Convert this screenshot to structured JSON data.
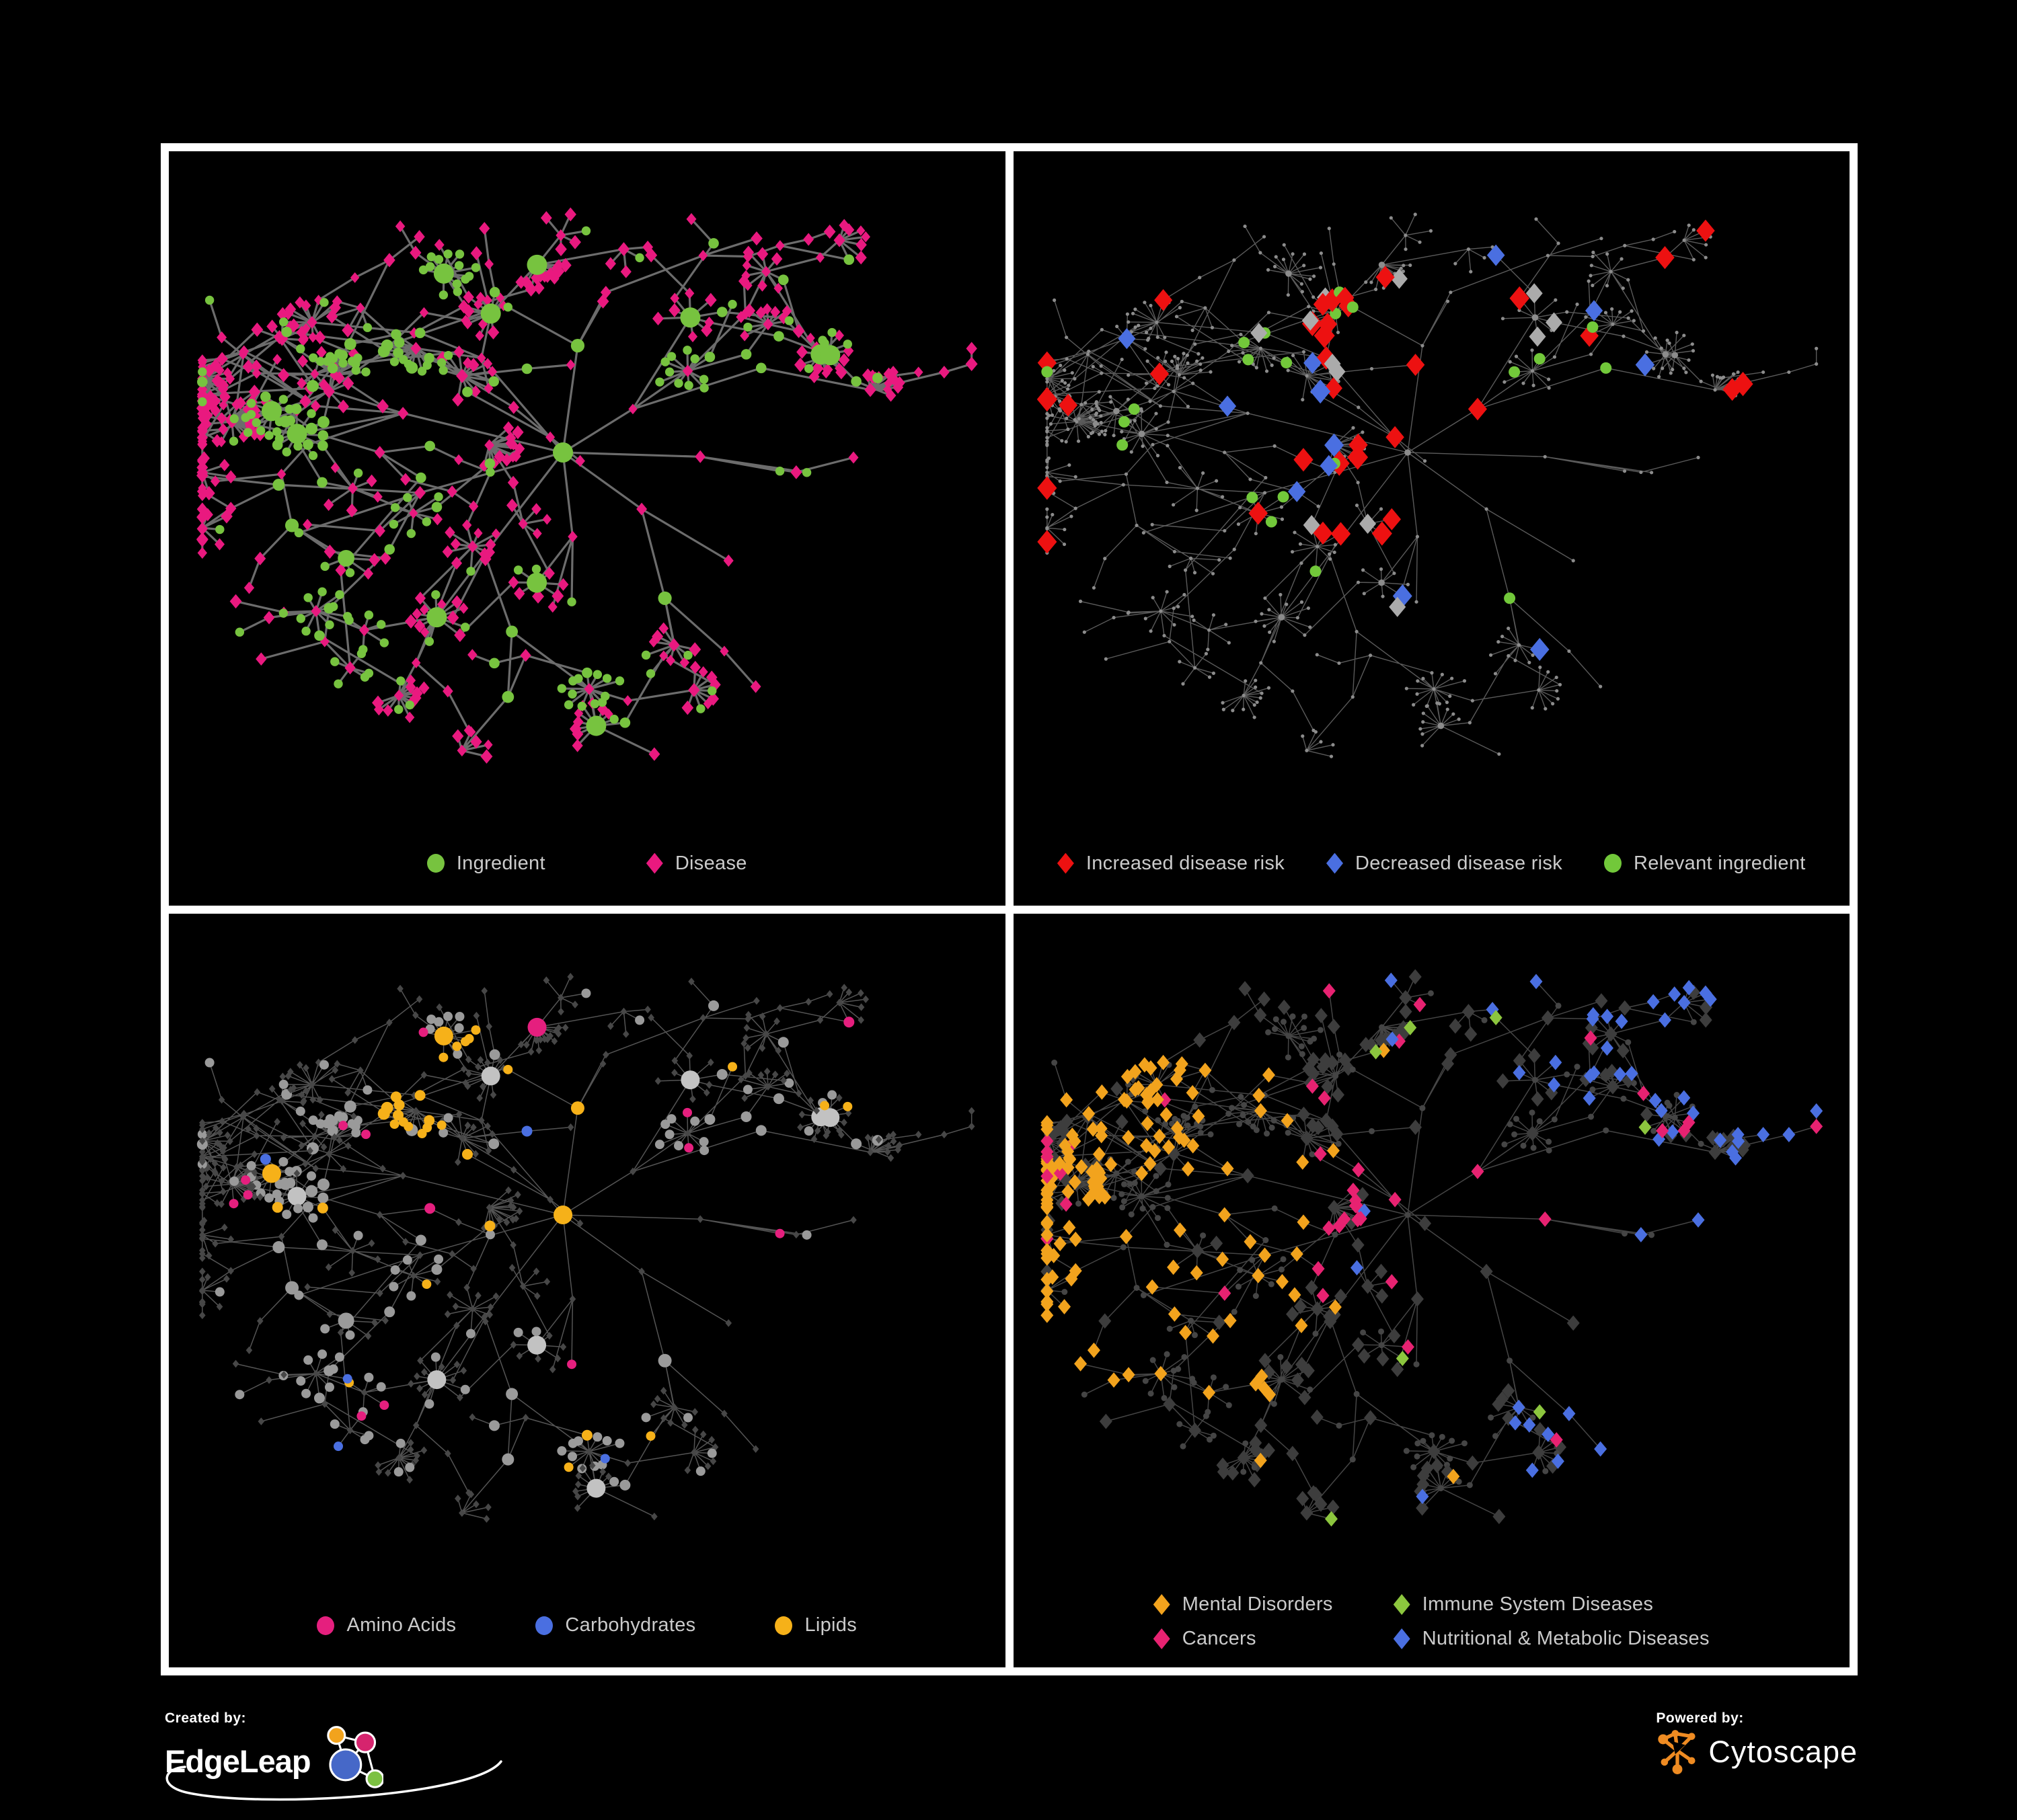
{
  "page": {
    "background": "#000000",
    "frame_color": "#ffffff"
  },
  "panels": [
    {
      "id": "ingredient-disease",
      "legend_rows": [
        [
          {
            "shape": "circle",
            "color": "#77C33F",
            "label": "Ingredient"
          },
          {
            "shape": "diamond",
            "color": "#E9197F",
            "label": "Disease"
          }
        ]
      ]
    },
    {
      "id": "disease-risk",
      "legend_rows": [
        [
          {
            "shape": "diamond",
            "color": "#ED1111",
            "label": "Increased disease risk"
          },
          {
            "shape": "diamond",
            "color": "#4A6FE1",
            "label": "Decreased disease risk"
          },
          {
            "shape": "circle",
            "color": "#72C83A",
            "label": "Relevant ingredient"
          }
        ]
      ]
    },
    {
      "id": "ingredient-classes",
      "legend_rows": [
        [
          {
            "shape": "circle",
            "color": "#E51F7E",
            "label": "Amino Acids"
          },
          {
            "shape": "circle",
            "color": "#4A6FE1",
            "label": "Carbohydrates"
          },
          {
            "shape": "circle",
            "color": "#F6B119",
            "label": "Lipids"
          }
        ]
      ]
    },
    {
      "id": "disease-classes",
      "legend_rows": [
        [
          {
            "shape": "diamond",
            "color": "#F2A31D",
            "label": "Mental Disorders"
          },
          {
            "shape": "diamond",
            "color": "#8CC63E",
            "label": "Immune System Diseases"
          }
        ],
        [
          {
            "shape": "diamond",
            "color": "#E72271",
            "label": "Cancers"
          },
          {
            "shape": "diamond",
            "color": "#4A6FE1",
            "label": "Nutritional & Metabolic Diseases"
          }
        ]
      ]
    }
  ],
  "footer": {
    "created_by": "Created by:",
    "brand": "EdgeLeap",
    "powered_by": "Powered by:",
    "engine": "Cytoscape",
    "cytoscape_orange": "#EE8B22",
    "edgeleap_node_colors": {
      "orange": "#F2A31D",
      "pink": "#D6246E",
      "blue": "#4668C8",
      "green": "#7CC142"
    }
  },
  "network": {
    "seed": 11,
    "target_nodes": 640,
    "branches": 9,
    "step": 0.16,
    "burst_prob": 0.26,
    "burst_max": 11,
    "cross_links": 45,
    "palettes": {
      "p1": {
        "edge": "#6C6C6C",
        "edge_w": 3.2,
        "edge_o": 1,
        "circle": "#77C33F",
        "diamond": "#E9197F"
      },
      "p2": {
        "edge": "#5A5A5A",
        "edge_w": 1.4,
        "edge_o": 1,
        "dot": "#8C8C8C",
        "red": "#ED1111",
        "blue": "#4A6FE1",
        "gray": "#ABABAB",
        "green": "#72C83A"
      },
      "p3": {
        "edge": "#A8A8A8",
        "edge_w": 1.5,
        "edge_o": 0.5,
        "gray": "#9A9A9A",
        "light": "#C2C2C2",
        "orange": "#F6B119",
        "blue": "#4A6FE1",
        "pink": "#E51F7E",
        "diamond": "#474747"
      },
      "p4": {
        "edge": "#989898",
        "edge_w": 1.5,
        "edge_o": 0.45,
        "circle": "#454545",
        "diamond": "#3D3D3D",
        "orange": "#F2A31D",
        "green": "#8CC63E",
        "pink": "#E72271",
        "blue": "#4A6FE1"
      }
    }
  }
}
